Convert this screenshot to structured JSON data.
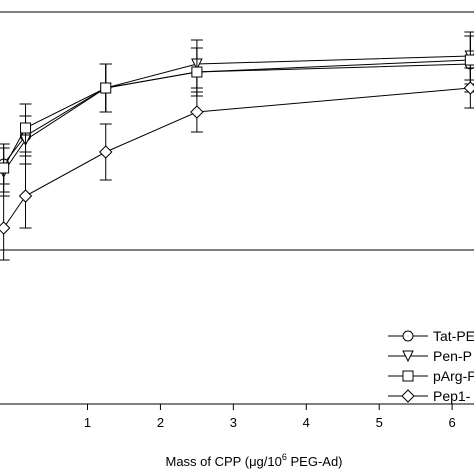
{
  "chart_data": {
    "type": "line",
    "xlabel": {
      "text": "Mass of CPP (",
      "unit": "μg/10",
      "sup": "6",
      "tail": " PEG-Ad)"
    },
    "xlim": [
      -0.2,
      6.3
    ],
    "ylim": [
      0,
      100
    ],
    "xticks": [
      1,
      2,
      3,
      4,
      5,
      6
    ],
    "x": [
      -0.15,
      0.15,
      1.25,
      2.5,
      6.25
    ],
    "grid": false,
    "legend_position": "bottom-right",
    "series": [
      {
        "name": "Tat-PE",
        "marker": "circle",
        "y": [
          62,
          69,
          81,
          85,
          87
        ],
        "err": [
          5,
          5,
          6,
          6,
          7
        ]
      },
      {
        "name": "Pen-P",
        "marker": "triangle-down",
        "y": [
          60,
          68,
          81,
          87,
          89
        ],
        "err": [
          6,
          6,
          6,
          6,
          6
        ]
      },
      {
        "name": "pArg-P",
        "marker": "square",
        "y": [
          61,
          71,
          81,
          85,
          88
        ],
        "err": [
          6,
          6,
          6,
          6,
          6
        ]
      },
      {
        "name": "Pep1-",
        "marker": "diamond",
        "y": [
          46,
          54,
          65,
          75,
          81
        ],
        "err": [
          8,
          8,
          7,
          5,
          5
        ]
      }
    ]
  }
}
